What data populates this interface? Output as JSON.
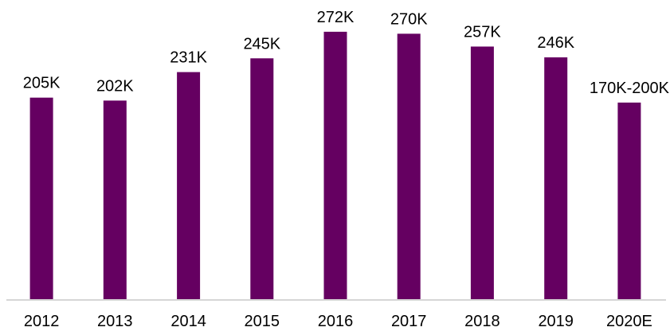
{
  "chart_data": {
    "type": "bar",
    "title": "",
    "xlabel": "",
    "ylabel": "",
    "categories": [
      "2012",
      "2013",
      "2014",
      "2015",
      "2016",
      "2017",
      "2018",
      "2019",
      "2020E"
    ],
    "values": [
      205,
      202,
      231,
      245,
      272,
      270,
      257,
      246,
      200
    ],
    "data_labels": [
      "205K",
      "202K",
      "231K",
      "245K",
      "272K",
      "270K",
      "257K",
      "246K",
      "170K-200K"
    ],
    "ylim": [
      0,
      276
    ],
    "grid": false,
    "legend": "none",
    "bar_color": "#650061",
    "axis_color": "#c8c8c8"
  }
}
